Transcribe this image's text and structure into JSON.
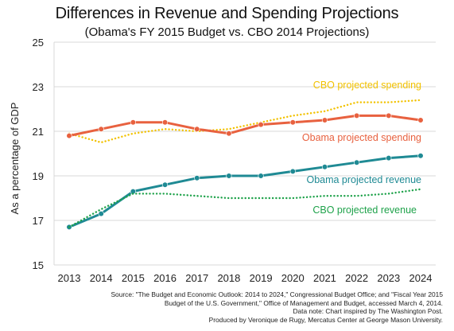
{
  "chart_data": {
    "type": "line",
    "title": "Differences in Revenue and Spending Projections",
    "subtitle": "(Obama's FY 2015 Budget vs. CBO 2014 Projections)",
    "ylabel": "As a percentage  of GDP",
    "xlabel": "",
    "ylim": [
      15,
      25
    ],
    "yticks": [
      "15",
      "17",
      "19",
      "21",
      "23",
      "25"
    ],
    "x": [
      "2013",
      "2014",
      "2015",
      "2016",
      "2017",
      "2018",
      "2019",
      "2020",
      "2021",
      "2022",
      "2023",
      "2024"
    ],
    "grid": "horizontal",
    "series": [
      {
        "name": "CBO projected spending",
        "style": "dotted",
        "color": "#f2c200",
        "markers": false,
        "values": [
          20.9,
          20.5,
          20.9,
          21.1,
          21.0,
          21.1,
          21.4,
          21.7,
          21.9,
          22.3,
          22.3,
          22.4
        ]
      },
      {
        "name": "Obama projected spending",
        "style": "solid",
        "color": "#e8613f",
        "markers": true,
        "values": [
          20.8,
          21.1,
          21.4,
          21.4,
          21.1,
          20.9,
          21.3,
          21.4,
          21.5,
          21.7,
          21.7,
          21.5
        ]
      },
      {
        "name": "Obama projected revenue",
        "style": "solid",
        "color": "#1f8a94",
        "markers": true,
        "values": [
          16.7,
          17.3,
          18.3,
          18.6,
          18.9,
          19.0,
          19.0,
          19.2,
          19.4,
          19.6,
          19.8,
          19.9
        ]
      },
      {
        "name": "CBO projected revenue",
        "style": "dotted",
        "color": "#1ea24a",
        "markers": false,
        "values": [
          16.7,
          17.5,
          18.2,
          18.2,
          18.1,
          18.0,
          18.0,
          18.0,
          18.1,
          18.1,
          18.2,
          18.4
        ]
      }
    ],
    "source_lines": [
      "Source: \"The Budget and Economic Outlook: 2014 to 2024,\" Congressional Budget Office; and \"Fiscal Year 2015",
      "Budget of the U.S. Government,\" Office of Management and Budget, accessed March 4, 2014.",
      "Data note: Chart inspired by The Washington Post.",
      "Produced by Veronique de Rugy, Mercatus Center at George Mason University."
    ]
  }
}
